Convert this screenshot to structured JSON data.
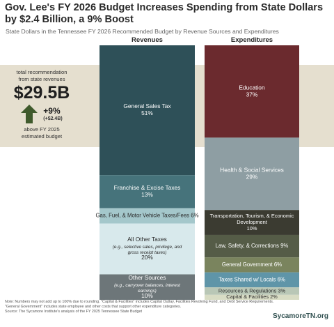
{
  "header": {
    "title": "Gov. Lee's FY 2026 Budget Increases Spending from State Dollars by $2.4 Billion, a 9% Boost",
    "subtitle": "State Dollars in the Tennessee FY 2026 Recommended Budget by Revenue Sources and Expenditures"
  },
  "callout": {
    "line1": "total recommendation",
    "line2": "from state revenues",
    "total": "$29.5B",
    "growth_pct": "+9%",
    "growth_abs": "(+$2.4B)",
    "line3": "above FY 2025",
    "line4": "estimated budget",
    "icon": "up-arrow-icon"
  },
  "chart_data": {
    "type": "bar",
    "subtype": "100% stacked columns",
    "series": [
      {
        "name": "Revenues",
        "segments": [
          {
            "label": "General Sales Tax",
            "value": 51,
            "value_label": "51%",
            "color": "#2e5058"
          },
          {
            "label": "Franchise & Excise Taxes",
            "value": 13,
            "value_label": "13%",
            "color": "#46737b"
          },
          {
            "label": "Gas, Fuel, & Motor Vehicle Taxes/Fees",
            "value": 6,
            "value_label": "6%",
            "color": "#a4c7cb"
          },
          {
            "label": "All Other Taxes",
            "sublabel": "(e.g., selective sales, privilege, and gross receipt taxes)",
            "value": 20,
            "value_label": "20%",
            "color": "#d8e9ec"
          },
          {
            "label": "Other Sources",
            "sublabel": "(e.g., carryover balances, interest earnings)",
            "value": 10,
            "value_label": "10%",
            "color": "#6d7679"
          }
        ]
      },
      {
        "name": "Expenditures",
        "segments": [
          {
            "label": "Education",
            "value": 37,
            "value_label": "37%",
            "color": "#6b2a2e"
          },
          {
            "label": "Health & Social Services",
            "value": 29,
            "value_label": "29%",
            "color": "#8e9ea3"
          },
          {
            "label": "Transportation, Tourism, & Economic Development",
            "value": 10,
            "value_label": "10%",
            "color": "#3b3b31"
          },
          {
            "label": "Law, Safety, & Corrections",
            "value": 9,
            "value_label": "9%",
            "color": "#555c47"
          },
          {
            "label": "General Government",
            "value": 6,
            "value_label": "6%",
            "color": "#7a845e"
          },
          {
            "label": "Taxes Shared w/ Locals",
            "value": 6,
            "value_label": "6%",
            "color": "#5f95a8"
          },
          {
            "label": "Resources & Regulations",
            "value": 3,
            "value_label": "3%",
            "color": "#b9c7b6"
          },
          {
            "label": "Capital & Facilities",
            "value": 2,
            "value_label": "2%",
            "color": "#d8dcc4"
          }
        ]
      }
    ],
    "legend": "none",
    "grid": false
  },
  "footer": {
    "notes": "Note: Numbers may not add up to 100% due to rounding. \"Capital & Facilities\" includes Capital Outlay, Facilities Revolving Fund, and Debt Service Requirements. \"General Government\" includes state employee and other costs that support other expenditure categories.",
    "source": "Source: The Sycamore Institute's analysis of the FY 2025 Tennessee State Budget",
    "brand": "SycamoreTN.org"
  }
}
